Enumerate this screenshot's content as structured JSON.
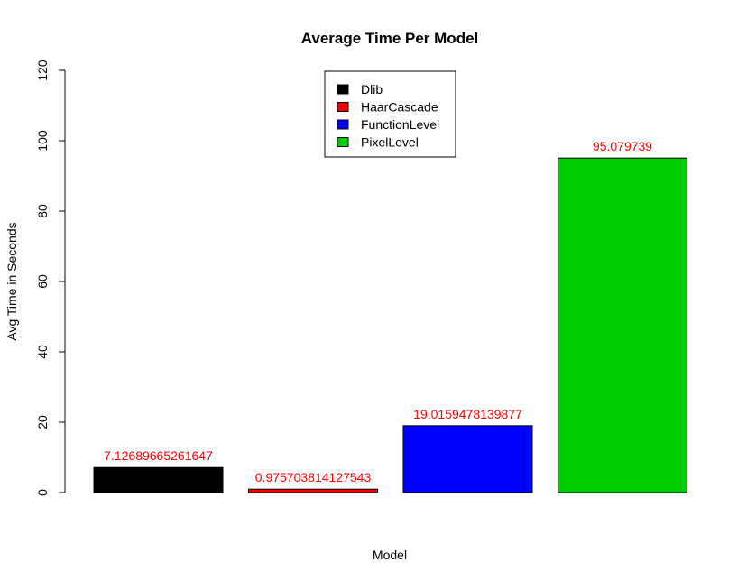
{
  "chart_data": {
    "type": "bar",
    "title": "Average Time Per Model",
    "xlabel": "Model",
    "ylabel": "Avg Time in Seconds",
    "ylim": [
      0,
      120
    ],
    "yticks": [
      0,
      20,
      40,
      60,
      80,
      100,
      120
    ],
    "categories": [
      "Dlib",
      "HaarCascade",
      "FunctionLevel",
      "PixelLevel"
    ],
    "values": [
      7.12689665261647,
      0.975703814127543,
      19.0159478139877,
      95.079739
    ],
    "data_labels": [
      "7.12689665261647",
      "0.975703814127543",
      "19.0159478139877",
      "95.079739"
    ],
    "colors": [
      "#000000",
      "#ff0000",
      "#0000ff",
      "#00cd00"
    ],
    "data_label_color": "#ff0000",
    "legend": {
      "placement": "top-center",
      "entries": [
        "Dlib",
        "HaarCascade",
        "FunctionLevel",
        "PixelLevel"
      ]
    },
    "grid": false
  }
}
